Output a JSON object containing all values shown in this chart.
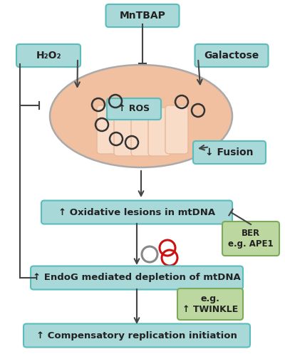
{
  "bg_color": "#ffffff",
  "box_teal_color": "#5bbcbc",
  "box_teal_fill": "#a8d8d8",
  "box_green_color": "#7aaa5a",
  "box_green_fill": "#bcd8a0",
  "mito_outer_fill": "#f0c0a0",
  "mito_outer_edge": "#aaaaaa",
  "mito_cristae_fill": "#f8dcc8",
  "mito_cristae_edge": "#e8b898",
  "text_color": "#222222",
  "arrow_color": "#444444",
  "mtdna_circle_color": "#333333",
  "damaged_gray_color": "#888888",
  "damaged_red_color": "#cc1111",
  "labels": {
    "mntbap": "MnTBAP",
    "h2o2": "H₂O₂",
    "galactose": "Galactose",
    "ros": "↑ ROS",
    "fusion": "↓ Fusion",
    "oxidative": "↑ Oxidative lesions in mtDNA",
    "endog": "↑ EndoG mediated depletion of mtDNA",
    "compensatory": "↑ Compensatory replication initiation",
    "ber": "BER\ne.g. APE1",
    "twinkle": "e.g.\n↑ TWINKLE"
  },
  "figsize": [
    4.0,
    5.04
  ],
  "dpi": 100
}
